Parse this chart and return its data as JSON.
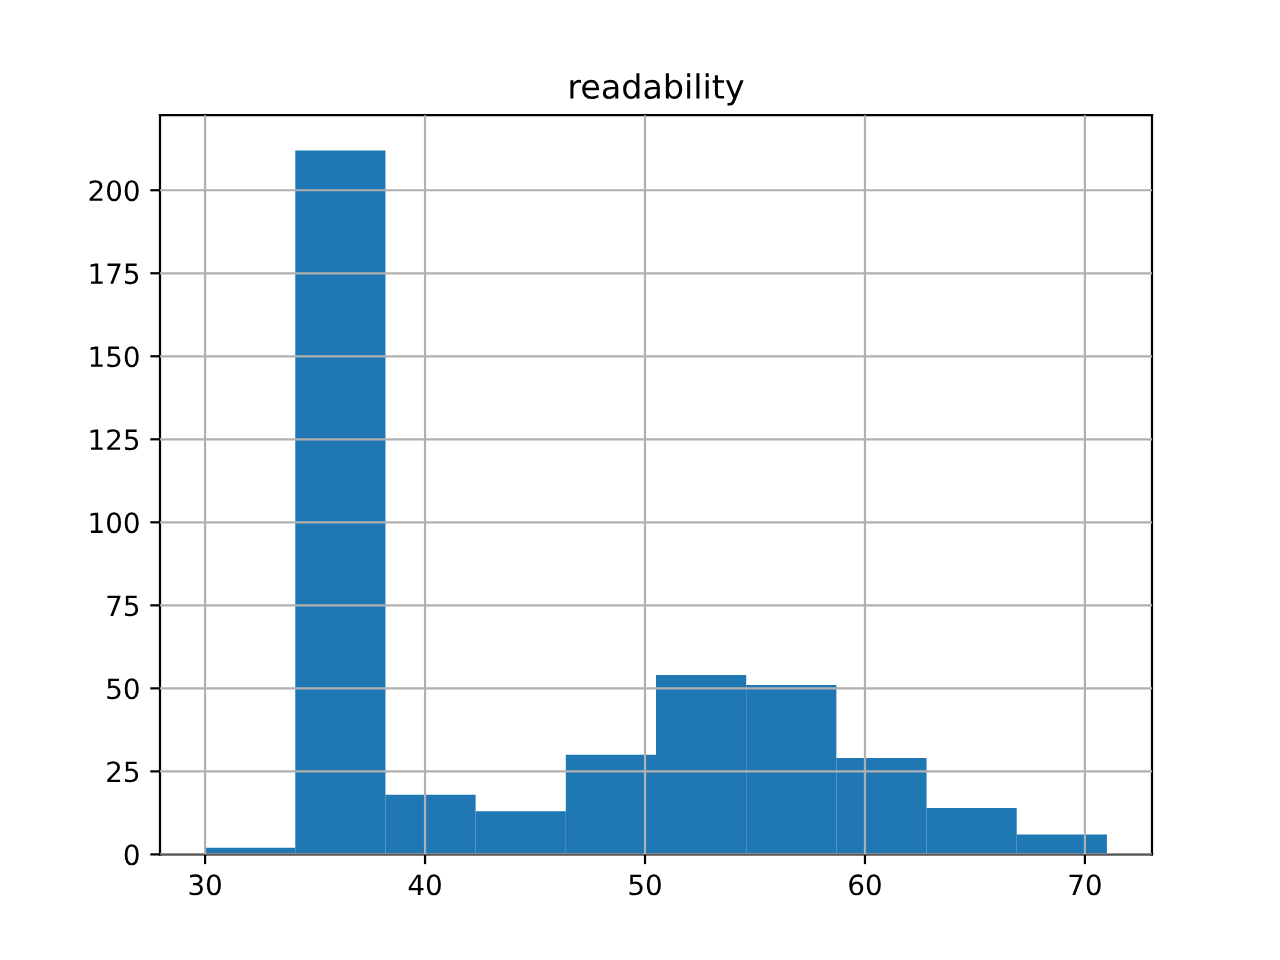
{
  "chart_data": {
    "type": "histogram",
    "title": "readability",
    "bins": [
      30,
      34.1,
      38.2,
      42.3,
      46.4,
      50.5,
      54.6,
      58.7,
      62.8,
      66.9,
      71
    ],
    "values": [
      2,
      212,
      18,
      13,
      30,
      54,
      51,
      29,
      14,
      6
    ],
    "color": "#1f77b4",
    "xlim": [
      27.95,
      73.05
    ],
    "xticks": [
      30,
      40,
      50,
      60,
      70
    ],
    "ylim": [
      0,
      222.6
    ],
    "yticks": [
      0,
      25,
      50,
      75,
      100,
      125,
      150,
      175,
      200
    ],
    "grid": true
  }
}
